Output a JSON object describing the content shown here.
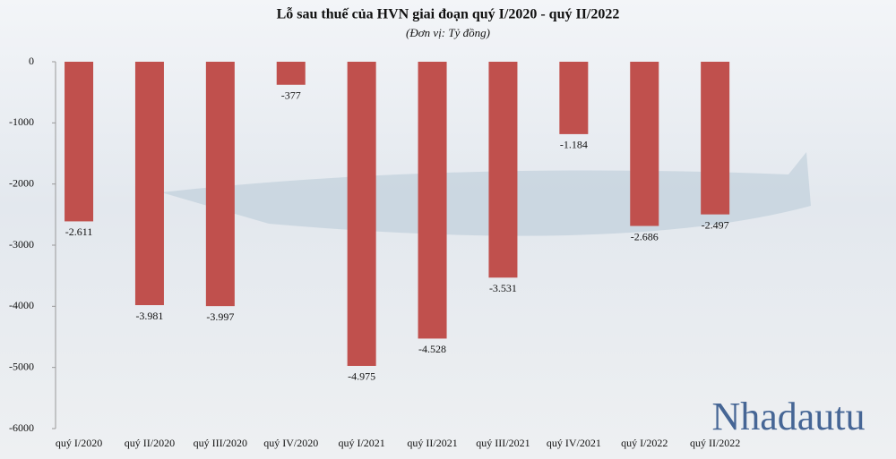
{
  "chart_data": {
    "type": "bar",
    "title": "Lỗ sau thuế của HVN giai đoạn quý I/2020  - quý II/2022",
    "subtitle": "(Đơn vị: Tỷ đồng)",
    "categories": [
      "quý I/2020",
      "quý II/2020",
      "quý III/2020",
      "quý IV/2020",
      "quý I/2021",
      "quý II/2021",
      "quý III/2021",
      "quý IV/2021",
      "quý I/2022",
      "quý II/2022"
    ],
    "values": [
      -2611,
      -3981,
      -3997,
      -377,
      -4975,
      -4528,
      -3531,
      -1184,
      -2686,
      -2497
    ],
    "value_labels": [
      "-2.611",
      "-3.981",
      "-3.997",
      "-377",
      "-4.975",
      "-4.528",
      "-3.531",
      "-1.184",
      "-2.686",
      "-2.497"
    ],
    "color": "#c0504d",
    "ylim": [
      -6000,
      0
    ],
    "yticks": [
      0,
      -1000,
      -2000,
      -3000,
      -4000,
      -5000,
      -6000
    ],
    "watermark": "Nhadautu"
  }
}
